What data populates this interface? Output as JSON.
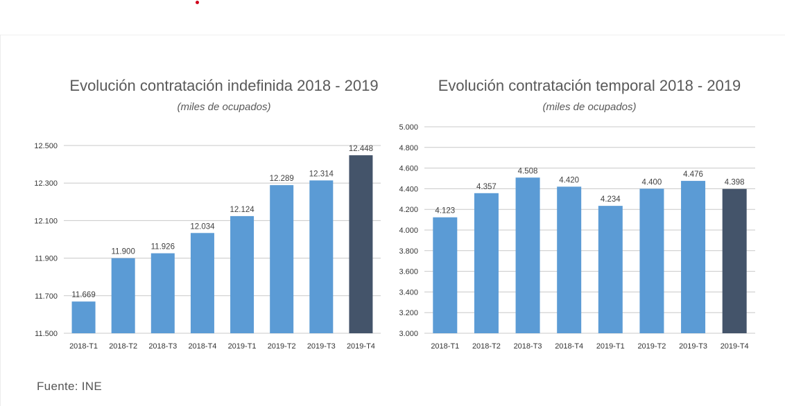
{
  "chart_data": [
    {
      "type": "bar",
      "title": "Evolución contratación indefinida 2018 - 2019",
      "subtitle": "(miles de ocupados)",
      "categories": [
        "2018-T1",
        "2018-T2",
        "2018-T3",
        "2018-T4",
        "2019-T1",
        "2019-T2",
        "2019-T3",
        "2019-T4"
      ],
      "values": [
        11669,
        11900,
        11926,
        12034,
        12124,
        12289,
        12314,
        12448
      ],
      "value_labels": [
        "11.669",
        "11.900",
        "11.926",
        "12.034",
        "12.124",
        "12.289",
        "12.314",
        "12.448"
      ],
      "yticks": [
        11500,
        11700,
        11900,
        12100,
        12300,
        12500
      ],
      "ytick_labels": [
        "11.500",
        "11.700",
        "11.900",
        "12.100",
        "12.300",
        "12.500"
      ],
      "ylim": [
        11500,
        12500
      ],
      "xlabel": "",
      "ylabel": "",
      "grid": true,
      "colors": {
        "bar": "#5b9bd5",
        "highlight": "#44546a"
      },
      "highlight_index": 7
    },
    {
      "type": "bar",
      "title": "Evolución contratación temporal 2018 - 2019",
      "subtitle": "(miles de ocupados)",
      "categories": [
        "2018-T1",
        "2018-T2",
        "2018-T3",
        "2018-T4",
        "2019-T1",
        "2019-T2",
        "2019-T3",
        "2019-T4"
      ],
      "values": [
        4123,
        4357,
        4508,
        4420,
        4234,
        4400,
        4476,
        4398
      ],
      "value_labels": [
        "4.123",
        "4.357",
        "4.508",
        "4.420",
        "4.234",
        "4.400",
        "4.476",
        "4.398"
      ],
      "yticks": [
        3000,
        3200,
        3400,
        3600,
        3800,
        4000,
        4200,
        4400,
        4600,
        4800,
        5000
      ],
      "ytick_labels": [
        "3.000",
        "3.200",
        "3.400",
        "3.600",
        "3.800",
        "4.000",
        "4.200",
        "4.400",
        "4.600",
        "4.800",
        "5.000"
      ],
      "ylim": [
        3000,
        5000
      ],
      "xlabel": "",
      "ylabel": "",
      "grid": true,
      "colors": {
        "bar": "#5b9bd5",
        "highlight": "#44546a"
      },
      "highlight_index": 7
    }
  ],
  "source": "Fuente: INE"
}
